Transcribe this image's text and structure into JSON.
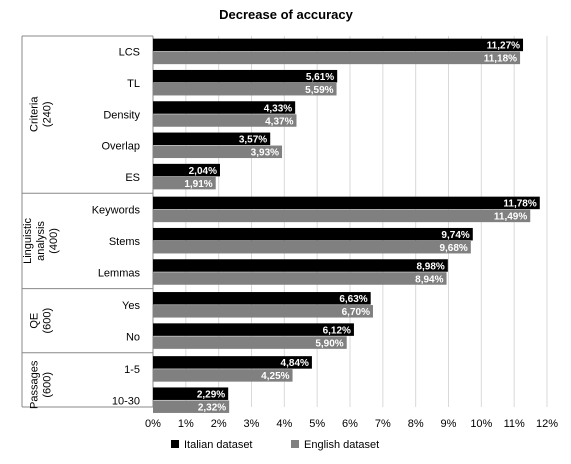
{
  "chart_data": {
    "type": "bar",
    "orientation": "horizontal",
    "title": "Decrease of accuracy",
    "xlabel": "",
    "ylabel": "",
    "xlim": [
      0,
      12
    ],
    "ticks": [
      "0%",
      "1%",
      "2%",
      "3%",
      "4%",
      "5%",
      "6%",
      "7%",
      "8%",
      "9%",
      "10%",
      "11%",
      "12%"
    ],
    "grid": "vertical",
    "legend_position": "bottom",
    "colors": {
      "italian": "#000000",
      "english": "#808080"
    },
    "groups": [
      {
        "label_lines": [
          "Criteria",
          "(240)"
        ],
        "categories": [
          {
            "name": "LCS",
            "values": [
              11.27,
              11.18
            ],
            "labels": [
              "11,27%",
              "11,18%"
            ]
          },
          {
            "name": "TL",
            "values": [
              5.61,
              5.59
            ],
            "labels": [
              "5,61%",
              "5,59%"
            ]
          },
          {
            "name": "Density",
            "values": [
              4.33,
              4.37
            ],
            "labels": [
              "4,33%",
              "4,37%"
            ]
          },
          {
            "name": "Overlap",
            "values": [
              3.57,
              3.93
            ],
            "labels": [
              "3,57%",
              "3,93%"
            ]
          },
          {
            "name": "ES",
            "values": [
              2.04,
              1.91
            ],
            "labels": [
              "2,04%",
              "1,91%"
            ]
          }
        ]
      },
      {
        "label_lines": [
          "Linguistic",
          "analysis",
          "(400)"
        ],
        "categories": [
          {
            "name": "Keywords",
            "values": [
              11.78,
              11.49
            ],
            "labels": [
              "11,78%",
              "11,49%"
            ]
          },
          {
            "name": "Stems",
            "values": [
              9.74,
              9.68
            ],
            "labels": [
              "9,74%",
              "9,68%"
            ]
          },
          {
            "name": "Lemmas",
            "values": [
              8.98,
              8.94
            ],
            "labels": [
              "8,98%",
              "8,94%"
            ]
          }
        ]
      },
      {
        "label_lines": [
          "QE",
          "(600)"
        ],
        "categories": [
          {
            "name": "Yes",
            "values": [
              6.63,
              6.7
            ],
            "labels": [
              "6,63%",
              "6,70%"
            ]
          },
          {
            "name": "No",
            "values": [
              6.12,
              5.9
            ],
            "labels": [
              "6,12%",
              "5,90%"
            ]
          }
        ]
      },
      {
        "label_lines": [
          "Passages",
          "(600)"
        ],
        "categories": [
          {
            "name": "1-5",
            "values": [
              4.84,
              4.25
            ],
            "labels": [
              "4,84%",
              "4,25%"
            ]
          },
          {
            "name": "10-30",
            "values": [
              2.29,
              2.32
            ],
            "labels": [
              "2,29%",
              "2,32%"
            ]
          }
        ]
      }
    ],
    "series": [
      {
        "name": "Italian dataset"
      },
      {
        "name": "English dataset"
      }
    ]
  }
}
